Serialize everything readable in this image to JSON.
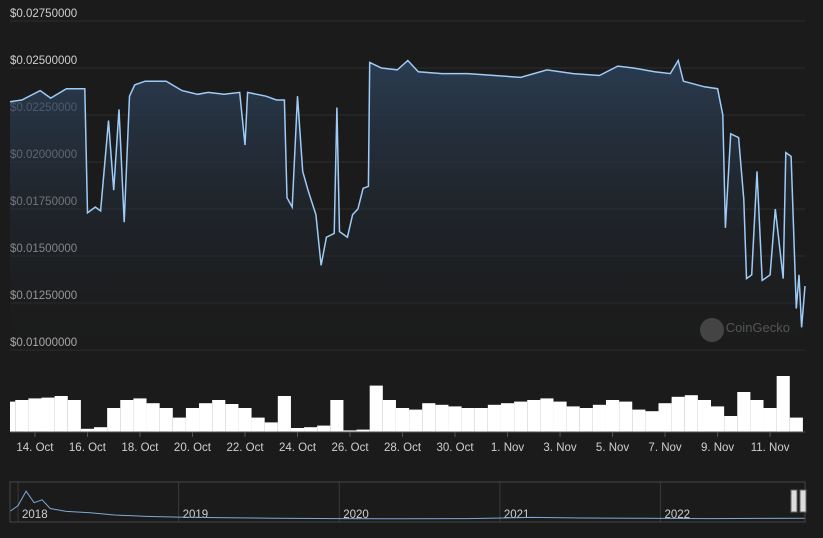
{
  "chart_data": {
    "type": "line",
    "color": "#9ecbf7",
    "watermark": "CoinGecko",
    "ylim": [
      0.01,
      0.0275
    ],
    "yticks": [
      {
        "value": 0.01,
        "label": "$0.01000000"
      },
      {
        "value": 0.0125,
        "label": "$0.01250000"
      },
      {
        "value": 0.015,
        "label": "$0.01500000"
      },
      {
        "value": 0.0175,
        "label": "$0.01750000"
      },
      {
        "value": 0.02,
        "label": "$0.02000000"
      },
      {
        "value": 0.0225,
        "label": "$0.02250000"
      },
      {
        "value": 0.025,
        "label": "$0.02500000"
      },
      {
        "value": 0.0275,
        "label": "$0.02750000"
      }
    ],
    "xlim": [
      13.05,
      43.33
    ],
    "xticks": [
      {
        "value": 14,
        "label": "14. Oct"
      },
      {
        "value": 16,
        "label": "16. Oct"
      },
      {
        "value": 18,
        "label": "18. Oct"
      },
      {
        "value": 20,
        "label": "20. Oct"
      },
      {
        "value": 22,
        "label": "22. Oct"
      },
      {
        "value": 24,
        "label": "24. Oct"
      },
      {
        "value": 26,
        "label": "26. Oct"
      },
      {
        "value": 28,
        "label": "28. Oct"
      },
      {
        "value": 30,
        "label": "30. Oct"
      },
      {
        "value": 32,
        "label": "1. Nov"
      },
      {
        "value": 34,
        "label": "3. Nov"
      },
      {
        "value": 36,
        "label": "5. Nov"
      },
      {
        "value": 38,
        "label": "7. Nov"
      },
      {
        "value": 40,
        "label": "9. Nov"
      },
      {
        "value": 42,
        "label": "11. Nov"
      }
    ],
    "grid": true,
    "x": [
      13.05,
      13.5,
      14.2,
      14.6,
      15.2,
      15.9,
      16.0,
      16.3,
      16.5,
      16.8,
      17.0,
      17.2,
      17.4,
      17.6,
      17.8,
      18.2,
      19.0,
      19.6,
      20.2,
      20.6,
      21.2,
      21.8,
      22.0,
      22.1,
      22.8,
      23.2,
      23.5,
      23.6,
      23.8,
      24.0,
      24.2,
      24.4,
      24.7,
      24.9,
      25.1,
      25.4,
      25.5,
      25.6,
      25.9,
      26.1,
      26.3,
      26.5,
      26.7,
      26.75,
      27.2,
      27.8,
      28.2,
      28.6,
      29.5,
      30.5,
      31.5,
      32.5,
      33.5,
      34.5,
      35.5,
      36.2,
      36.8,
      37.6,
      38.2,
      38.5,
      38.7,
      39.5,
      40.0,
      40.2,
      40.3,
      40.5,
      40.8,
      41.0,
      41.1,
      41.3,
      41.5,
      41.7,
      42.0,
      42.2,
      42.5,
      42.6,
      42.8,
      43.0,
      43.1,
      43.2,
      43.33
    ],
    "values": [
      0.0232,
      0.0233,
      0.0238,
      0.0234,
      0.0239,
      0.0239,
      0.0173,
      0.0176,
      0.0174,
      0.0222,
      0.0185,
      0.0228,
      0.0168,
      0.0235,
      0.0241,
      0.0243,
      0.0243,
      0.0238,
      0.0236,
      0.0237,
      0.0236,
      0.0237,
      0.0209,
      0.0237,
      0.0235,
      0.0233,
      0.0233,
      0.0181,
      0.0176,
      0.0235,
      0.0195,
      0.0185,
      0.0172,
      0.0145,
      0.016,
      0.0162,
      0.0229,
      0.0163,
      0.016,
      0.0172,
      0.0175,
      0.0186,
      0.0187,
      0.0253,
      0.025,
      0.0249,
      0.0254,
      0.0248,
      0.0247,
      0.0247,
      0.0246,
      0.0245,
      0.0249,
      0.0247,
      0.0246,
      0.0251,
      0.025,
      0.0248,
      0.0247,
      0.0254,
      0.0243,
      0.024,
      0.0239,
      0.0225,
      0.0165,
      0.0215,
      0.0213,
      0.018,
      0.0138,
      0.014,
      0.0195,
      0.0137,
      0.014,
      0.0175,
      0.0138,
      0.0205,
      0.0203,
      0.0122,
      0.014,
      0.0112,
      0.0134
    ],
    "volume": {
      "vlim": [
        0,
        100
      ],
      "x": [
        13.0,
        13.5,
        14.0,
        14.5,
        15.0,
        15.5,
        16.0,
        16.5,
        17.0,
        17.5,
        18.0,
        18.5,
        19.0,
        19.5,
        20.0,
        20.5,
        21.0,
        21.5,
        22.0,
        22.5,
        23.0,
        23.5,
        24.0,
        24.5,
        25.0,
        25.5,
        26.0,
        26.5,
        27.0,
        27.5,
        28.0,
        28.5,
        29.0,
        29.5,
        30.0,
        30.5,
        31.0,
        31.5,
        32.0,
        32.5,
        33.0,
        33.5,
        34.0,
        34.5,
        35.0,
        35.5,
        36.0,
        36.5,
        37.0,
        37.5,
        38.0,
        38.5,
        39.0,
        39.5,
        40.0,
        40.5,
        41.0,
        41.5,
        42.0,
        42.5,
        43.0
      ],
      "values": [
        38,
        40,
        42,
        43,
        45,
        40,
        4,
        6,
        30,
        40,
        42,
        36,
        30,
        18,
        30,
        36,
        40,
        35,
        30,
        18,
        12,
        45,
        5,
        6,
        8,
        40,
        2,
        3,
        58,
        40,
        30,
        28,
        36,
        34,
        32,
        30,
        30,
        34,
        36,
        38,
        40,
        42,
        38,
        32,
        30,
        34,
        40,
        38,
        28,
        26,
        36,
        44,
        46,
        40,
        32,
        20,
        50,
        40,
        30,
        70,
        18
      ]
    },
    "navigator": {
      "xlim": [
        2017.95,
        2022.9
      ],
      "ylim": [
        0,
        0.25
      ],
      "xticks": [
        {
          "value": 2018,
          "label": "2018"
        },
        {
          "value": 2019,
          "label": "2019"
        },
        {
          "value": 2020,
          "label": "2020"
        },
        {
          "value": 2021,
          "label": "2021"
        },
        {
          "value": 2022,
          "label": "2022"
        }
      ],
      "x": [
        2017.95,
        2018.0,
        2018.05,
        2018.1,
        2018.15,
        2018.2,
        2018.3,
        2018.45,
        2018.6,
        2018.8,
        2019.0,
        2019.3,
        2019.6,
        2020.0,
        2020.4,
        2020.8,
        2021.2,
        2021.5,
        2021.9,
        2022.3,
        2022.6,
        2022.9
      ],
      "values": [
        0.06,
        0.1,
        0.2,
        0.12,
        0.14,
        0.08,
        0.06,
        0.05,
        0.035,
        0.025,
        0.02,
        0.016,
        0.012,
        0.01,
        0.008,
        0.01,
        0.018,
        0.014,
        0.012,
        0.01,
        0.011,
        0.012
      ]
    }
  }
}
